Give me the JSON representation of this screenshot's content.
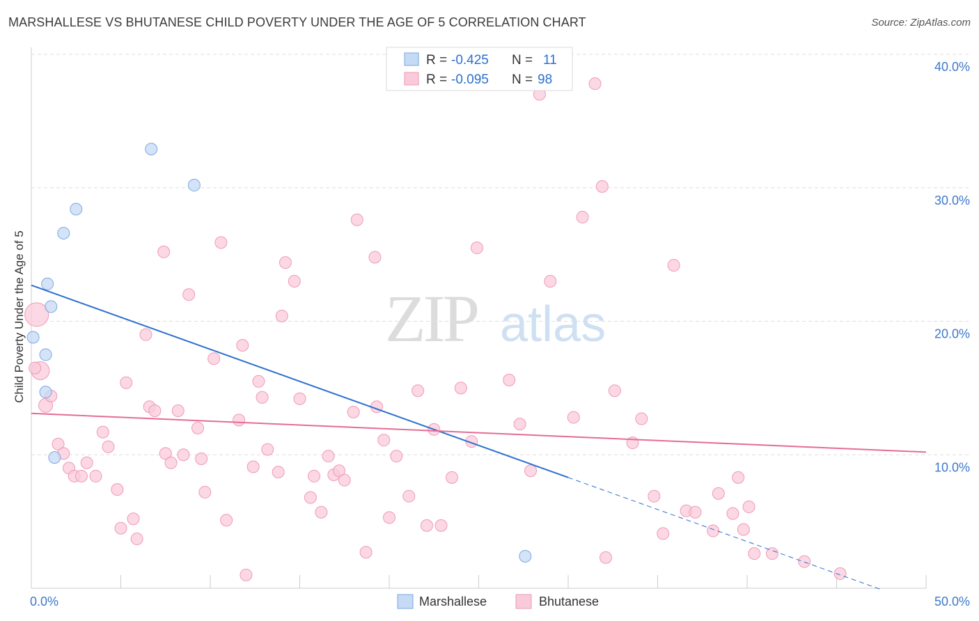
{
  "title": "MARSHALLESE VS BHUTANESE CHILD POVERTY UNDER THE AGE OF 5 CORRELATION CHART",
  "source": "Source: ZipAtlas.com",
  "watermark": {
    "zip": "ZIP",
    "atlas": "atlas"
  },
  "chart_data": {
    "type": "scatter",
    "title": "MARSHALLESE VS BHUTANESE CHILD POVERTY UNDER THE AGE OF 5 CORRELATION CHART",
    "xlabel": "",
    "ylabel": "Child Poverty Under the Age of 5",
    "xlim": [
      0,
      50
    ],
    "ylim": [
      0,
      40
    ],
    "x_tick_labels": {
      "left": "0.0%",
      "right": "50.0%"
    },
    "y_ticks": [
      10,
      20,
      30,
      40
    ],
    "y_tick_labels": [
      "10.0%",
      "20.0%",
      "30.0%",
      "40.0%"
    ],
    "legend": {
      "rows": [
        {
          "r_label": "R =",
          "r_value": "-0.425",
          "n_label": "N =",
          "n_value": "11"
        },
        {
          "r_label": "R =",
          "r_value": "-0.095",
          "n_label": "N =",
          "n_value": "98"
        }
      ]
    },
    "series": [
      {
        "name": "Marshallese",
        "color": "#7aaae0",
        "fill": "#c5daf5",
        "line_color": "#2b6fcf",
        "trend": {
          "x0": 0,
          "y0": 22.7,
          "x1": 30,
          "y1": 8.3,
          "dash_to_x": 47.5
        },
        "points": [
          [
            0.1,
            18.8
          ],
          [
            0.8,
            14.7
          ],
          [
            0.8,
            17.5
          ],
          [
            0.9,
            22.8
          ],
          [
            1.1,
            21.1
          ],
          [
            1.3,
            9.8
          ],
          [
            1.8,
            26.6
          ],
          [
            2.5,
            28.4
          ],
          [
            6.7,
            32.9
          ],
          [
            9.1,
            30.2
          ],
          [
            27.6,
            2.4
          ]
        ]
      },
      {
        "name": "Bhutanese",
        "color": "#f09ab6",
        "fill": "#f9cbda",
        "line_color": "#e46c94",
        "trend": {
          "x0": 0,
          "y0": 13.1,
          "x1": 50,
          "y1": 10.2
        },
        "points": [
          [
            0.3,
            20.5
          ],
          [
            0.5,
            16.3
          ],
          [
            0.8,
            13.7
          ],
          [
            1.1,
            14.4
          ],
          [
            1.5,
            10.8
          ],
          [
            1.8,
            10.1
          ],
          [
            2.1,
            9.0
          ],
          [
            2.4,
            8.4
          ],
          [
            2.8,
            8.4
          ],
          [
            3.1,
            9.4
          ],
          [
            3.6,
            8.4
          ],
          [
            4.0,
            11.7
          ],
          [
            4.3,
            10.6
          ],
          [
            4.8,
            7.4
          ],
          [
            5.0,
            4.5
          ],
          [
            5.3,
            15.4
          ],
          [
            5.7,
            5.2
          ],
          [
            5.9,
            3.7
          ],
          [
            6.4,
            19.0
          ],
          [
            6.6,
            13.6
          ],
          [
            6.9,
            13.3
          ],
          [
            7.4,
            25.2
          ],
          [
            7.5,
            10.1
          ],
          [
            7.8,
            9.4
          ],
          [
            8.2,
            13.3
          ],
          [
            8.5,
            10.0
          ],
          [
            8.8,
            22.0
          ],
          [
            9.3,
            12.0
          ],
          [
            9.5,
            9.7
          ],
          [
            9.7,
            7.2
          ],
          [
            10.2,
            17.2
          ],
          [
            10.6,
            25.9
          ],
          [
            10.9,
            5.1
          ],
          [
            11.6,
            12.6
          ],
          [
            11.8,
            18.2
          ],
          [
            12.0,
            1.0
          ],
          [
            12.4,
            9.1
          ],
          [
            12.7,
            15.5
          ],
          [
            12.9,
            14.3
          ],
          [
            13.2,
            10.4
          ],
          [
            13.8,
            8.7
          ],
          [
            14.0,
            20.4
          ],
          [
            14.2,
            24.4
          ],
          [
            14.7,
            23.0
          ],
          [
            15.0,
            14.2
          ],
          [
            15.6,
            6.8
          ],
          [
            15.8,
            8.4
          ],
          [
            16.2,
            5.7
          ],
          [
            16.6,
            9.9
          ],
          [
            16.9,
            8.5
          ],
          [
            17.2,
            8.8
          ],
          [
            17.5,
            8.1
          ],
          [
            18.0,
            13.2
          ],
          [
            18.2,
            27.6
          ],
          [
            18.7,
            2.7
          ],
          [
            19.2,
            24.8
          ],
          [
            19.3,
            13.6
          ],
          [
            19.7,
            11.1
          ],
          [
            20.0,
            5.3
          ],
          [
            20.4,
            9.9
          ],
          [
            21.1,
            6.9
          ],
          [
            21.6,
            14.8
          ],
          [
            22.1,
            4.7
          ],
          [
            22.5,
            11.9
          ],
          [
            22.9,
            4.7
          ],
          [
            23.5,
            8.3
          ],
          [
            24.0,
            15.0
          ],
          [
            24.6,
            11.0
          ],
          [
            24.9,
            25.5
          ],
          [
            26.7,
            15.6
          ],
          [
            27.3,
            12.3
          ],
          [
            27.9,
            8.8
          ],
          [
            28.4,
            37.0
          ],
          [
            29.0,
            23.0
          ],
          [
            30.3,
            12.8
          ],
          [
            30.8,
            27.8
          ],
          [
            31.5,
            37.8
          ],
          [
            31.9,
            30.1
          ],
          [
            32.1,
            2.3
          ],
          [
            32.6,
            14.8
          ],
          [
            33.6,
            10.9
          ],
          [
            34.1,
            12.7
          ],
          [
            34.8,
            6.9
          ],
          [
            35.3,
            4.1
          ],
          [
            35.9,
            24.2
          ],
          [
            36.6,
            5.8
          ],
          [
            37.1,
            5.7
          ],
          [
            38.1,
            4.3
          ],
          [
            38.4,
            7.1
          ],
          [
            39.2,
            5.6
          ],
          [
            39.5,
            8.3
          ],
          [
            39.8,
            4.4
          ],
          [
            40.1,
            6.1
          ],
          [
            40.4,
            2.6
          ],
          [
            41.4,
            2.6
          ],
          [
            43.2,
            2.0
          ],
          [
            45.2,
            1.1
          ],
          [
            0.2,
            16.5
          ]
        ]
      }
    ]
  }
}
